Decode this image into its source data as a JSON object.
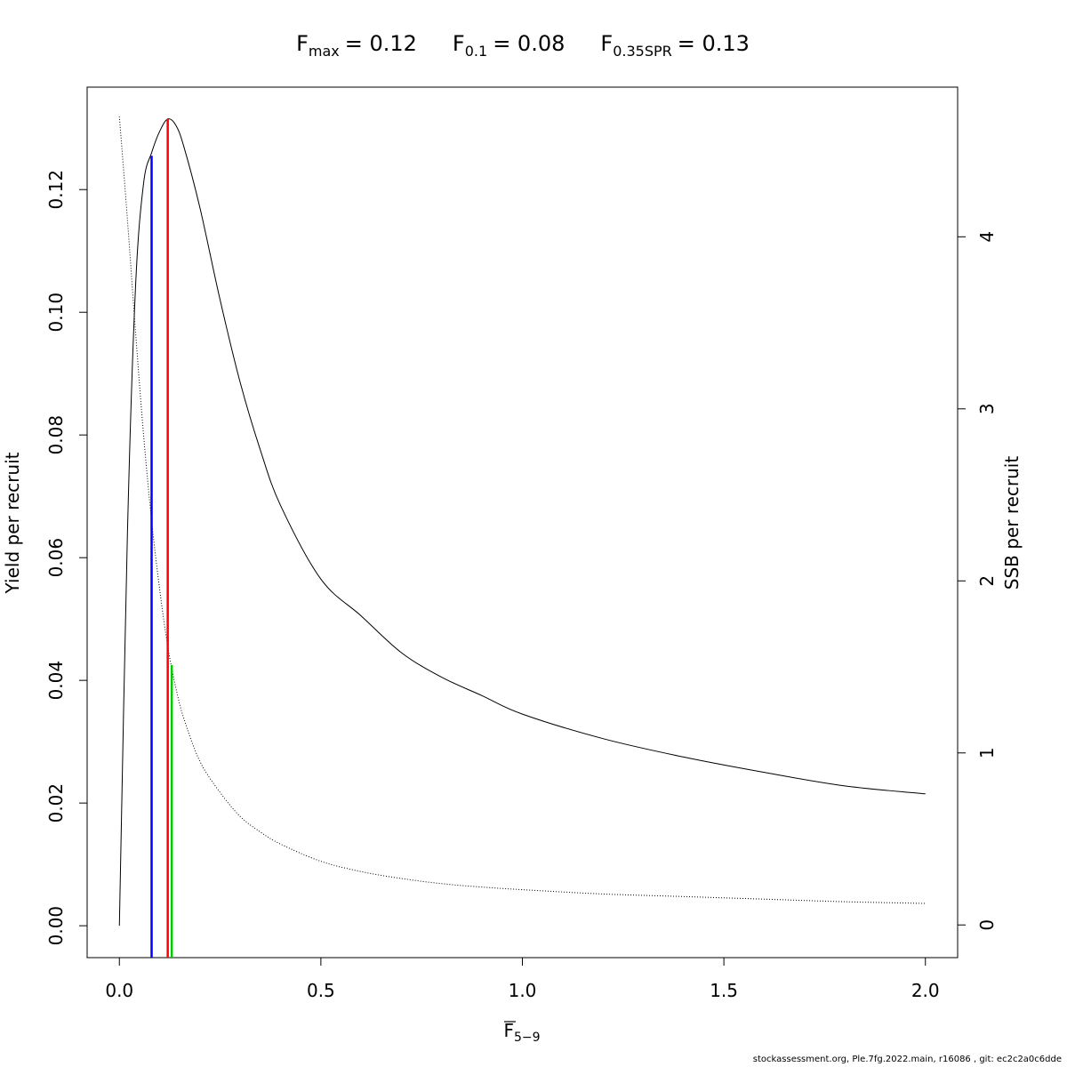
{
  "chart_data": {
    "type": "line",
    "title": {
      "fmax": {
        "symbol": "F",
        "sub": "max",
        "value": "= 0.12"
      },
      "f01": {
        "symbol": "F",
        "sub": "0.1",
        "value": "= 0.08"
      },
      "fspr": {
        "symbol": "F",
        "sub": "0.35SPR",
        "value": "= 0.13"
      }
    },
    "xlabel": {
      "symbol": "F",
      "sub": "5−9"
    },
    "ylabel_left": "Yield per recruit",
    "ylabel_right": "SSB per recruit",
    "xlim": [
      -0.08,
      2.08
    ],
    "ylim_left": [
      -0.0052,
      0.1367
    ],
    "ylim_right": [
      -0.19,
      4.87
    ],
    "x_ticks": [
      {
        "value": 0.0,
        "label": "0.0"
      },
      {
        "value": 0.5,
        "label": "0.5"
      },
      {
        "value": 1.0,
        "label": "1.0"
      },
      {
        "value": 1.5,
        "label": "1.5"
      },
      {
        "value": 2.0,
        "label": "2.0"
      }
    ],
    "y_left_ticks": [
      {
        "value": 0.0,
        "label": "0.00"
      },
      {
        "value": 0.02,
        "label": "0.02"
      },
      {
        "value": 0.04,
        "label": "0.04"
      },
      {
        "value": 0.06,
        "label": "0.06"
      },
      {
        "value": 0.08,
        "label": "0.08"
      },
      {
        "value": 0.1,
        "label": "0.10"
      },
      {
        "value": 0.12,
        "label": "0.12"
      }
    ],
    "y_right_ticks": [
      {
        "value": 0,
        "label": "0"
      },
      {
        "value": 1,
        "label": "1"
      },
      {
        "value": 2,
        "label": "2"
      },
      {
        "value": 3,
        "label": "3"
      },
      {
        "value": 4,
        "label": "4"
      }
    ],
    "series": [
      {
        "axis": "left",
        "style": "solid",
        "color": "#000000",
        "x": [
          0.0,
          0.02,
          0.04,
          0.06,
          0.08,
          0.1,
          0.12,
          0.14,
          0.16,
          0.2,
          0.25,
          0.3,
          0.35,
          0.4,
          0.5,
          0.6,
          0.7,
          0.8,
          0.9,
          1.0,
          1.2,
          1.4,
          1.6,
          1.8,
          2.0
        ],
        "y": [
          0.0,
          0.064,
          0.104,
          0.121,
          0.126,
          0.1295,
          0.1315,
          0.1305,
          0.127,
          0.117,
          0.102,
          0.0885,
          0.0775,
          0.0685,
          0.0565,
          0.0505,
          0.0445,
          0.0405,
          0.0375,
          0.0345,
          0.0305,
          0.0275,
          0.025,
          0.0228,
          0.0215
        ]
      },
      {
        "axis": "right",
        "style": "dotted",
        "color": "#000000",
        "x": [
          0.0,
          0.02,
          0.04,
          0.06,
          0.08,
          0.1,
          0.12,
          0.14,
          0.16,
          0.2,
          0.25,
          0.3,
          0.35,
          0.4,
          0.5,
          0.6,
          0.7,
          0.8,
          0.9,
          1.0,
          1.2,
          1.4,
          1.6,
          1.8,
          2.0
        ],
        "y": [
          4.7,
          4.1,
          3.45,
          2.85,
          2.35,
          1.95,
          1.62,
          1.38,
          1.2,
          0.95,
          0.77,
          0.63,
          0.54,
          0.47,
          0.37,
          0.31,
          0.27,
          0.24,
          0.22,
          0.205,
          0.18,
          0.165,
          0.15,
          0.135,
          0.125
        ]
      }
    ],
    "reference_lines": [
      {
        "name": "F0.1",
        "x": 0.08,
        "y": 0.1255,
        "color": "#0000ff"
      },
      {
        "name": "Fmax",
        "x": 0.12,
        "y": 0.1315,
        "color": "#ff0000"
      },
      {
        "name": "F0.35SPR",
        "x": 0.13,
        "y": 0.0425,
        "color": "#00cc00"
      }
    ]
  },
  "footer": "stockassessment.org, Ple.7fg.2022.main, r16086 , git: ec2c2a0c6dde"
}
